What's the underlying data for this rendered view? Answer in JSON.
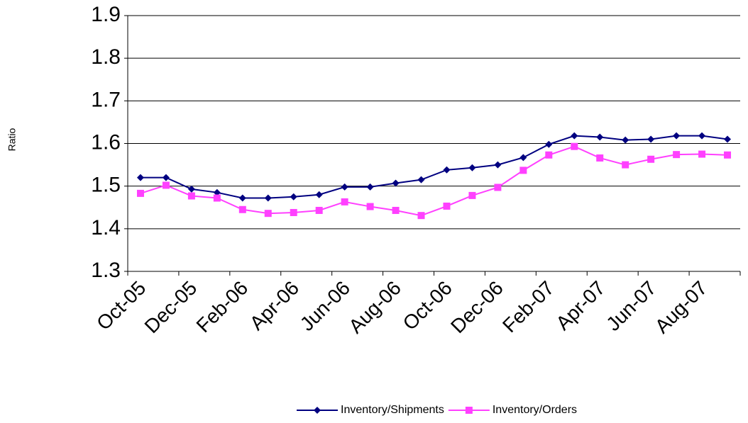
{
  "chart_data": {
    "type": "line",
    "ylabel": "Ratio",
    "categories": [
      "Oct-05",
      null,
      "Dec-05",
      null,
      "Feb-06",
      null,
      "Apr-06",
      null,
      "Jun-06",
      null,
      "Aug-06",
      null,
      "Oct-06",
      null,
      "Dec-06",
      null,
      "Feb-07",
      null,
      "Apr-07",
      null,
      "Jun-07",
      null,
      "Aug-07",
      null
    ],
    "series": [
      {
        "name": "Inventory/Shipments",
        "color": "#000080",
        "marker": "diamond",
        "values": [
          1.52,
          1.52,
          1.493,
          1.485,
          1.472,
          1.472,
          1.475,
          1.48,
          1.498,
          1.498,
          1.507,
          1.515,
          1.538,
          1.543,
          1.55,
          1.567,
          1.598,
          1.618,
          1.615,
          1.608,
          1.61,
          1.618,
          1.618,
          1.61
        ]
      },
      {
        "name": "Inventory/Orders",
        "color": "#ff40ff",
        "marker": "square",
        "values": [
          1.483,
          1.502,
          1.477,
          1.472,
          1.445,
          1.436,
          1.438,
          1.443,
          1.463,
          1.452,
          1.443,
          1.431,
          1.453,
          1.478,
          1.497,
          1.537,
          1.573,
          1.593,
          1.566,
          1.55,
          1.563,
          1.574,
          1.575,
          1.573
        ]
      }
    ],
    "ylim": [
      1.3,
      1.9
    ],
    "yticks": [
      1.3,
      1.4,
      1.5,
      1.6,
      1.7,
      1.8,
      1.9
    ],
    "grid": true,
    "legend": "bottom"
  }
}
